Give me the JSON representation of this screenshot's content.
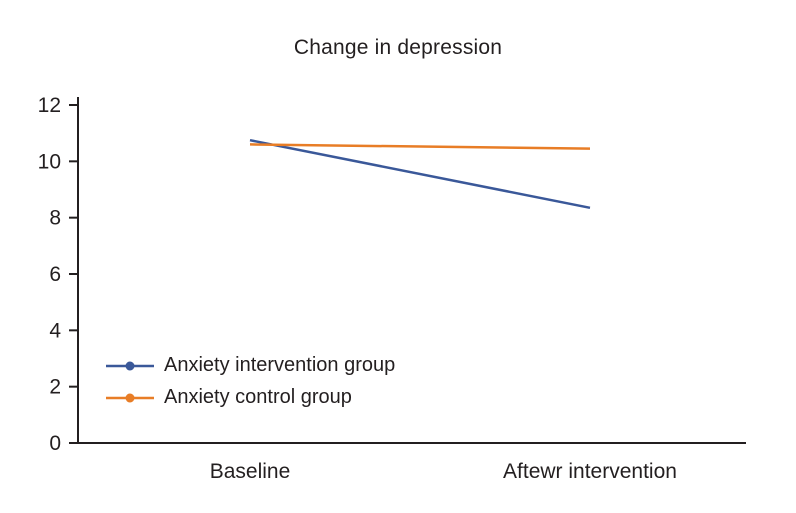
{
  "chart_data": {
    "type": "line",
    "title": "Change in depression",
    "categories": [
      "Baseline",
      "Aftewr intervention"
    ],
    "series": [
      {
        "name": "Anxiety intervention group",
        "color": "#3a5899",
        "values": [
          10.75,
          8.35
        ]
      },
      {
        "name": "Anxiety control group",
        "color": "#e87d26",
        "values": [
          10.6,
          10.45
        ]
      }
    ],
    "xlabel": "",
    "ylabel": "",
    "ylim": [
      0,
      12
    ],
    "yticks": [
      0,
      2,
      4,
      6,
      8,
      10,
      12
    ],
    "grid": false,
    "legend_position": "inside-lower-left",
    "axis_color": "#231f20",
    "text_color": "#231f20"
  }
}
